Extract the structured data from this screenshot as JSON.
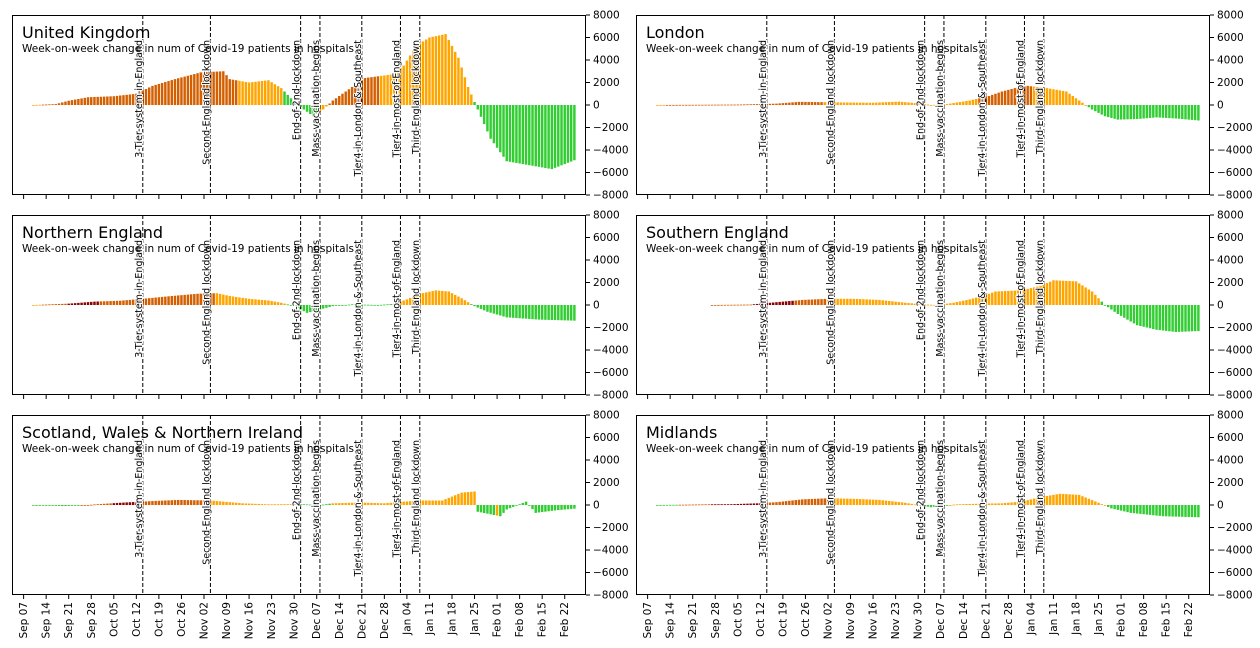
{
  "subtitle": "Week-on-week change in num of Covid-19 patients in hospitals",
  "colors": {
    "dark_red": "#8b0000",
    "dark_orange": "#d45f00",
    "orange": "#ffa500",
    "green": "#32cd32"
  },
  "chart_data": {
    "type": "bar",
    "start_date": "Sep 07",
    "num_days": 172,
    "ylim": [
      -8000,
      8000
    ],
    "yticks": [
      "8000",
      "6000",
      "4000",
      "2000",
      "0",
      "−2000",
      "−4000",
      "−6000",
      "−8000"
    ],
    "ytick_values": [
      8000,
      6000,
      4000,
      2000,
      0,
      -2000,
      -4000,
      -6000,
      -8000
    ],
    "xticks": [
      "Sep 07",
      "Sep 14",
      "Sep 21",
      "Sep 28",
      "Oct 05",
      "Oct 12",
      "Oct 19",
      "Oct 26",
      "Nov 02",
      "Nov 09",
      "Nov 16",
      "Nov 23",
      "Nov 30",
      "Dec 07",
      "Dec 14",
      "Dec 21",
      "Dec 28",
      "Jan 04",
      "Jan 11",
      "Jan 18",
      "Jan 25",
      "Feb 01",
      "Feb 08",
      "Feb 15",
      "Feb 22"
    ],
    "events": [
      {
        "label": "3-Tier-system-in-England",
        "day": 37
      },
      {
        "label": "Second-England lockdown",
        "day": 58
      },
      {
        "label": "End-of-2nd-lockdown",
        "day": 86
      },
      {
        "label": "Mass-vaccination-begins",
        "day": 92
      },
      {
        "label": "Tier4-in-London-&-Southeast",
        "day": 105
      },
      {
        "label": "Tier4-in-most-of-England",
        "day": 117
      },
      {
        "label": "Third-England lockdown",
        "day": 123
      }
    ],
    "regions": [
      {
        "title": "United Kingdom",
        "keypoints": [
          [
            3,
            0
          ],
          [
            10,
            80
          ],
          [
            14,
            380
          ],
          [
            20,
            690
          ],
          [
            28,
            780
          ],
          [
            35,
            1000
          ],
          [
            40,
            1700
          ],
          [
            47,
            2300
          ],
          [
            55,
            2900
          ],
          [
            62,
            3000
          ],
          [
            64,
            2300
          ],
          [
            70,
            2000
          ],
          [
            76,
            2200
          ],
          [
            80,
            1500
          ],
          [
            84,
            300
          ],
          [
            87,
            -400
          ],
          [
            90,
            -1000
          ],
          [
            93,
            -400
          ],
          [
            96,
            400
          ],
          [
            102,
            1600
          ],
          [
            106,
            2400
          ],
          [
            114,
            2700
          ],
          [
            118,
            3500
          ],
          [
            122,
            5300
          ],
          [
            126,
            6000
          ],
          [
            131,
            6300
          ],
          [
            135,
            4200
          ],
          [
            138,
            1600
          ],
          [
            141,
            -400
          ],
          [
            145,
            -3000
          ],
          [
            150,
            -5000
          ],
          [
            156,
            -5300
          ],
          [
            164,
            -5700
          ],
          [
            172,
            -4800
          ]
        ],
        "colorstops": [
          [
            0,
            "orange"
          ],
          [
            6,
            "dark_orange"
          ],
          [
            67,
            "orange"
          ],
          [
            81,
            "green"
          ],
          [
            92,
            "orange"
          ],
          [
            95,
            "dark_orange"
          ],
          [
            111,
            "orange"
          ],
          [
            140,
            "green"
          ]
        ]
      },
      {
        "title": "London",
        "keypoints": [
          [
            3,
            0
          ],
          [
            28,
            40
          ],
          [
            40,
            120
          ],
          [
            47,
            280
          ],
          [
            55,
            250
          ],
          [
            62,
            220
          ],
          [
            70,
            200
          ],
          [
            78,
            300
          ],
          [
            84,
            150
          ],
          [
            88,
            0
          ],
          [
            93,
            80
          ],
          [
            100,
            400
          ],
          [
            106,
            800
          ],
          [
            110,
            1200
          ],
          [
            114,
            1500
          ],
          [
            118,
            1700
          ],
          [
            124,
            1500
          ],
          [
            130,
            1200
          ],
          [
            134,
            400
          ],
          [
            138,
            -400
          ],
          [
            142,
            -1000
          ],
          [
            146,
            -1300
          ],
          [
            152,
            -1250
          ],
          [
            158,
            -1100
          ],
          [
            164,
            -1200
          ],
          [
            172,
            -1400
          ]
        ],
        "colorstops": [
          [
            0,
            "orange"
          ],
          [
            6,
            "dark_orange"
          ],
          [
            55,
            "orange"
          ],
          [
            103,
            "dark_orange"
          ],
          [
            120,
            "orange"
          ],
          [
            137,
            "green"
          ]
        ]
      },
      {
        "title": "Northern England",
        "keypoints": [
          [
            3,
            0
          ],
          [
            14,
            120
          ],
          [
            22,
            300
          ],
          [
            30,
            380
          ],
          [
            38,
            580
          ],
          [
            46,
            800
          ],
          [
            54,
            1000
          ],
          [
            60,
            1050
          ],
          [
            64,
            800
          ],
          [
            70,
            550
          ],
          [
            76,
            400
          ],
          [
            80,
            200
          ],
          [
            84,
            -100
          ],
          [
            88,
            -700
          ],
          [
            92,
            -400
          ],
          [
            96,
            -100
          ],
          [
            102,
            60
          ],
          [
            110,
            0
          ],
          [
            115,
            100
          ],
          [
            119,
            500
          ],
          [
            123,
            1000
          ],
          [
            128,
            1300
          ],
          [
            132,
            1200
          ],
          [
            136,
            600
          ],
          [
            140,
            -100
          ],
          [
            144,
            -600
          ],
          [
            150,
            -1100
          ],
          [
            160,
            -1300
          ],
          [
            172,
            -1400
          ]
        ],
        "colorstops": [
          [
            0,
            "orange"
          ],
          [
            6,
            "dark_orange"
          ],
          [
            14,
            "dark_red"
          ],
          [
            24,
            "dark_orange"
          ],
          [
            60,
            "orange"
          ],
          [
            82,
            "green"
          ],
          [
            116,
            "orange"
          ],
          [
            139,
            "green"
          ]
        ]
      },
      {
        "title": "Southern England",
        "keypoints": [
          [
            20,
            0
          ],
          [
            32,
            40
          ],
          [
            40,
            250
          ],
          [
            48,
            450
          ],
          [
            56,
            550
          ],
          [
            64,
            550
          ],
          [
            72,
            450
          ],
          [
            80,
            200
          ],
          [
            86,
            40
          ],
          [
            90,
            0
          ],
          [
            95,
            200
          ],
          [
            100,
            500
          ],
          [
            104,
            800
          ],
          [
            108,
            1200
          ],
          [
            116,
            1300
          ],
          [
            122,
            1700
          ],
          [
            126,
            2200
          ],
          [
            133,
            2100
          ],
          [
            138,
            1200
          ],
          [
            142,
            0
          ],
          [
            146,
            -800
          ],
          [
            152,
            -1800
          ],
          [
            158,
            -2200
          ],
          [
            164,
            -2400
          ],
          [
            172,
            -2300
          ]
        ],
        "colorstops": [
          [
            0,
            "orange"
          ],
          [
            12,
            "dark_orange"
          ],
          [
            33,
            "dark_red"
          ],
          [
            46,
            "dark_orange"
          ],
          [
            56,
            "orange"
          ],
          [
            108,
            "orange"
          ],
          [
            141,
            "green"
          ]
        ]
      },
      {
        "title": "Scotland, Wales & Northern Ireland",
        "keypoints": [
          [
            3,
            0
          ],
          [
            8,
            -50
          ],
          [
            12,
            -100
          ],
          [
            18,
            -50
          ],
          [
            22,
            50
          ],
          [
            30,
            200
          ],
          [
            40,
            350
          ],
          [
            48,
            450
          ],
          [
            58,
            400
          ],
          [
            68,
            150
          ],
          [
            76,
            60
          ],
          [
            86,
            80
          ],
          [
            92,
            0
          ],
          [
            96,
            150
          ],
          [
            104,
            220
          ],
          [
            112,
            150
          ],
          [
            118,
            300
          ],
          [
            124,
            400
          ],
          [
            130,
            400
          ],
          [
            136,
            1100
          ],
          [
            140,
            1200
          ],
          [
            141,
            -600
          ],
          [
            148,
            -1000
          ],
          [
            150,
            -400
          ],
          [
            156,
            300
          ],
          [
            159,
            -700
          ],
          [
            166,
            -450
          ],
          [
            172,
            -300
          ]
        ],
        "colorstops": [
          [
            0,
            "green"
          ],
          [
            18,
            "dark_orange"
          ],
          [
            28,
            "dark_red"
          ],
          [
            36,
            "dark_orange"
          ],
          [
            58,
            "orange"
          ],
          [
            84,
            "green"
          ],
          [
            96,
            "orange"
          ],
          [
            141,
            "green"
          ],
          [
            147,
            "orange"
          ],
          [
            148,
            "green"
          ]
        ]
      },
      {
        "title": "Midlands",
        "keypoints": [
          [
            3,
            0
          ],
          [
            12,
            30
          ],
          [
            18,
            60
          ],
          [
            26,
            70
          ],
          [
            34,
            150
          ],
          [
            40,
            250
          ],
          [
            48,
            500
          ],
          [
            56,
            600
          ],
          [
            64,
            550
          ],
          [
            72,
            450
          ],
          [
            80,
            200
          ],
          [
            84,
            0
          ],
          [
            88,
            -200
          ],
          [
            92,
            -60
          ],
          [
            96,
            60
          ],
          [
            104,
            120
          ],
          [
            110,
            150
          ],
          [
            116,
            300
          ],
          [
            122,
            700
          ],
          [
            128,
            1000
          ],
          [
            134,
            900
          ],
          [
            140,
            200
          ],
          [
            144,
            -300
          ],
          [
            150,
            -700
          ],
          [
            160,
            -1000
          ],
          [
            172,
            -1100
          ]
        ],
        "colorstops": [
          [
            0,
            "green"
          ],
          [
            10,
            "dark_orange"
          ],
          [
            20,
            "dark_red"
          ],
          [
            36,
            "dark_orange"
          ],
          [
            58,
            "orange"
          ],
          [
            84,
            "green"
          ],
          [
            94,
            "orange"
          ],
          [
            143,
            "green"
          ]
        ]
      }
    ]
  }
}
